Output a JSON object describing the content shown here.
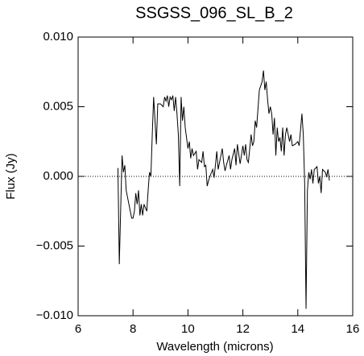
{
  "chart_data": {
    "type": "line",
    "title": "SSGSS_096_SL_B_2",
    "x_label": "Wavelength (microns)",
    "y_label": "Flux (Jy)",
    "x": [
      7.45,
      7.5,
      7.6,
      7.65,
      7.7,
      7.75,
      7.8,
      7.9,
      7.95,
      8.0,
      8.05,
      8.1,
      8.15,
      8.2,
      8.25,
      8.3,
      8.35,
      8.4,
      8.5,
      8.55,
      8.6,
      8.65,
      8.7,
      8.75,
      8.8,
      8.85,
      8.9,
      9.0,
      9.1,
      9.15,
      9.2,
      9.25,
      9.3,
      9.35,
      9.4,
      9.45,
      9.5,
      9.55,
      9.6,
      9.65,
      9.7,
      9.75,
      9.8,
      9.85,
      9.9,
      10.0,
      10.05,
      10.1,
      10.15,
      10.2,
      10.3,
      10.35,
      10.4,
      10.5,
      10.55,
      10.6,
      10.65,
      10.7,
      10.75,
      10.8,
      10.9,
      10.95,
      11.0,
      11.05,
      11.1,
      11.2,
      11.25,
      11.3,
      11.35,
      11.4,
      11.5,
      11.55,
      11.6,
      11.7,
      11.75,
      11.8,
      11.9,
      12.0,
      12.05,
      12.1,
      12.15,
      12.2,
      12.3,
      12.35,
      12.4,
      12.45,
      12.5,
      12.6,
      12.65,
      12.7,
      12.75,
      12.8,
      12.85,
      12.9,
      12.95,
      13.0,
      13.05,
      13.1,
      13.15,
      13.2,
      13.25,
      13.3,
      13.35,
      13.4,
      13.45,
      13.5,
      13.55,
      13.6,
      13.7,
      13.75,
      13.8,
      13.9,
      14.0,
      14.05,
      14.15,
      14.2,
      14.25,
      14.3,
      14.35,
      14.4,
      14.45,
      14.5,
      14.55,
      14.6,
      14.7,
      14.75,
      14.8,
      14.85,
      14.9,
      15.0,
      15.05,
      15.1,
      15.15
    ],
    "series": [
      {
        "name": "flux",
        "color": "#000000",
        "values": [
          0.0006,
          -0.0063,
          0.0015,
          0.0003,
          0.0008,
          -0.001,
          -0.0015,
          -0.0025,
          -0.003,
          -0.003,
          -0.0025,
          -0.0012,
          -0.002,
          -0.001,
          -0.0028,
          -0.002,
          -0.0028,
          -0.002,
          -0.0025,
          -0.001,
          0.0003,
          0.0,
          0.003,
          0.0057,
          0.004,
          0.0023,
          0.0052,
          0.0052,
          0.005,
          0.0057,
          0.0054,
          0.0058,
          0.005,
          0.0057,
          0.0055,
          0.0058,
          0.0047,
          0.0057,
          0.0045,
          0.003,
          -0.0007,
          0.0057,
          0.004,
          0.005,
          0.0035,
          0.002,
          0.0025,
          0.0013,
          0.002,
          0.0015,
          0.0018,
          0.0005,
          0.0012,
          0.001,
          0.0018,
          0.0007,
          0.0008,
          -0.0007,
          -0.0003,
          0.0,
          0.0005,
          -0.0001,
          0.0008,
          0.0018,
          0.0005,
          0.0015,
          0.002,
          0.001,
          0.0004,
          0.0008,
          0.0015,
          0.0005,
          0.0012,
          0.002,
          0.0008,
          0.0023,
          0.0009,
          0.0022,
          0.0015,
          0.0023,
          0.0012,
          0.001,
          0.003,
          0.0022,
          0.0025,
          0.004,
          0.0035,
          0.0062,
          0.0065,
          0.0068,
          0.0076,
          0.0062,
          0.0068,
          0.0055,
          0.0045,
          0.005,
          0.0045,
          0.003,
          0.0042,
          0.0015,
          0.0035,
          0.0025,
          0.0028,
          0.0018,
          0.0035,
          0.0015,
          0.003,
          0.0035,
          0.0025,
          0.003,
          0.0022,
          0.0023,
          0.0025,
          0.0022,
          0.0045,
          0.003,
          -0.0005,
          -0.0095,
          -0.001,
          0.0003,
          -0.0002,
          0.0005,
          -0.0005,
          0.0005,
          0.0007,
          -0.0005,
          0.0,
          -0.0012,
          0.0005,
          0.0003,
          0.0,
          0.0005,
          -0.0003
        ]
      }
    ],
    "xlim": [
      6,
      16
    ],
    "xticks": [
      6,
      8,
      10,
      12,
      14,
      16
    ],
    "ylim": [
      -0.01,
      0.01
    ],
    "yticks": [
      {
        "value": -0.01,
        "label": "−0.010"
      },
      {
        "value": -0.005,
        "label": "−0.005"
      },
      {
        "value": 0,
        "label": "0.000"
      },
      {
        "value": 0.005,
        "label": "0.005"
      },
      {
        "value": 0.01,
        "label": "0.010"
      }
    ],
    "reference_line": 0
  }
}
